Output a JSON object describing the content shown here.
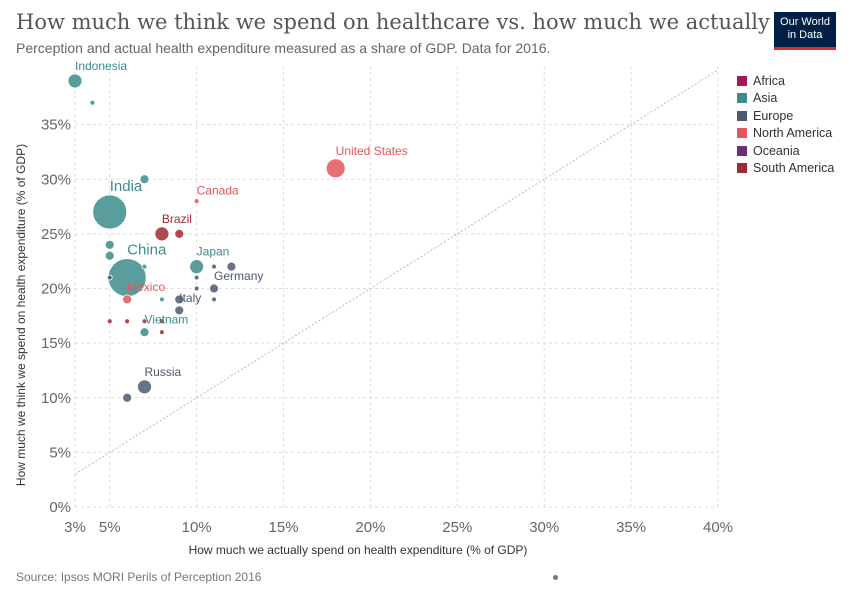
{
  "header": {
    "title": "How much we think we spend on healthcare vs. how much we actually do",
    "subtitle": "Perception and actual health expenditure measured as a share of GDP. Data for 2016.",
    "logo_line1": "Our World",
    "logo_line2": "in Data"
  },
  "footer": {
    "source": "Source: Ipsos MORI Perils of Perception 2016"
  },
  "legend": [
    {
      "label": "Africa",
      "color": "#a2185b"
    },
    {
      "label": "Asia",
      "color": "#3c8c8c"
    },
    {
      "label": "Europe",
      "color": "#4c5a72"
    },
    {
      "label": "North America",
      "color": "#e25759"
    },
    {
      "label": "Oceania",
      "color": "#6d2e78"
    },
    {
      "label": "South America",
      "color": "#a02a33"
    }
  ],
  "chart_data": {
    "type": "scatter",
    "xlabel": "How much we actually spend on health expenditure (% of GDP)",
    "ylabel": "How much we think we spend on health expenditure (% of GDP)",
    "xlim": [
      3,
      40
    ],
    "ylim": [
      0,
      40
    ],
    "x_ticks": [
      {
        "value": 3,
        "label": "3%"
      },
      {
        "value": 5,
        "label": "5%"
      },
      {
        "value": 10,
        "label": "10%"
      },
      {
        "value": 15,
        "label": "15%"
      },
      {
        "value": 20,
        "label": "20%"
      },
      {
        "value": 25,
        "label": "25%"
      },
      {
        "value": 30,
        "label": "30%"
      },
      {
        "value": 35,
        "label": "35%"
      },
      {
        "value": 40,
        "label": "40%"
      }
    ],
    "y_ticks": [
      {
        "value": 0,
        "label": "0%"
      },
      {
        "value": 5,
        "label": "5%"
      },
      {
        "value": 10,
        "label": "10%"
      },
      {
        "value": 15,
        "label": "15%"
      },
      {
        "value": 20,
        "label": "20%"
      },
      {
        "value": 25,
        "label": "25%"
      },
      {
        "value": 30,
        "label": "30%"
      },
      {
        "value": 35,
        "label": "35%"
      }
    ],
    "grid": true,
    "reference_line": "x = y",
    "legend_position": "right",
    "points": [
      {
        "label": "Indonesia",
        "region": "Asia",
        "x": 3,
        "y": 39,
        "size": "medium"
      },
      {
        "label": "",
        "region": "Asia",
        "x": 4,
        "y": 37,
        "size": "tiny"
      },
      {
        "label": "India",
        "region": "Asia",
        "x": 5,
        "y": 27,
        "size": "xxlarge"
      },
      {
        "label": "",
        "region": "Asia",
        "x": 7,
        "y": 30,
        "size": "small"
      },
      {
        "label": "Canada",
        "region": "North America",
        "x": 10,
        "y": 28,
        "size": "tiny"
      },
      {
        "label": "United States",
        "region": "North America",
        "x": 18,
        "y": 31,
        "size": "large"
      },
      {
        "label": "Brazil",
        "region": "South America",
        "x": 8,
        "y": 25,
        "size": "medium"
      },
      {
        "label": "",
        "region": "South America",
        "x": 9,
        "y": 25,
        "size": "small"
      },
      {
        "label": "",
        "region": "Asia",
        "x": 5,
        "y": 24,
        "size": "small"
      },
      {
        "label": "",
        "region": "Asia",
        "x": 5,
        "y": 23,
        "size": "small"
      },
      {
        "label": "China",
        "region": "Asia",
        "x": 6,
        "y": 21,
        "size": "xxxlarge"
      },
      {
        "label": "",
        "region": "Europe",
        "x": 5,
        "y": 21,
        "size": "tiny"
      },
      {
        "label": "",
        "region": "Asia",
        "x": 7,
        "y": 22,
        "size": "tiny"
      },
      {
        "label": "Japan",
        "region": "Asia",
        "x": 10,
        "y": 22,
        "size": "medium"
      },
      {
        "label": "",
        "region": "Europe",
        "x": 11,
        "y": 22,
        "size": "tiny"
      },
      {
        "label": "",
        "region": "Europe",
        "x": 12,
        "y": 22,
        "size": "small"
      },
      {
        "label": "",
        "region": "Europe",
        "x": 10,
        "y": 21,
        "size": "tiny"
      },
      {
        "label": "Germany",
        "region": "Europe",
        "x": 11,
        "y": 20,
        "size": "small"
      },
      {
        "label": "",
        "region": "Europe",
        "x": 10,
        "y": 20,
        "size": "tiny"
      },
      {
        "label": "Mexico",
        "region": "North America",
        "x": 6,
        "y": 19,
        "size": "small"
      },
      {
        "label": "",
        "region": "Asia",
        "x": 8,
        "y": 19,
        "size": "tiny"
      },
      {
        "label": "",
        "region": "Europe",
        "x": 9,
        "y": 19,
        "size": "small"
      },
      {
        "label": "",
        "region": "Europe",
        "x": 11,
        "y": 19,
        "size": "tiny"
      },
      {
        "label": "Italy",
        "region": "Europe",
        "x": 9,
        "y": 18,
        "size": "small"
      },
      {
        "label": "",
        "region": "South America",
        "x": 5,
        "y": 17,
        "size": "tiny"
      },
      {
        "label": "",
        "region": "South America",
        "x": 6,
        "y": 17,
        "size": "tiny"
      },
      {
        "label": "",
        "region": "South America",
        "x": 7,
        "y": 17,
        "size": "tiny"
      },
      {
        "label": "",
        "region": "South America",
        "x": 8,
        "y": 17,
        "size": "tiny"
      },
      {
        "label": "Vietnam",
        "region": "Asia",
        "x": 7,
        "y": 16,
        "size": "small"
      },
      {
        "label": "",
        "region": "South America",
        "x": 8,
        "y": 16,
        "size": "tiny"
      },
      {
        "label": "Russia",
        "region": "Europe",
        "x": 7,
        "y": 11,
        "size": "medium"
      },
      {
        "label": "",
        "region": "Europe",
        "x": 6,
        "y": 10,
        "size": "small"
      }
    ]
  }
}
